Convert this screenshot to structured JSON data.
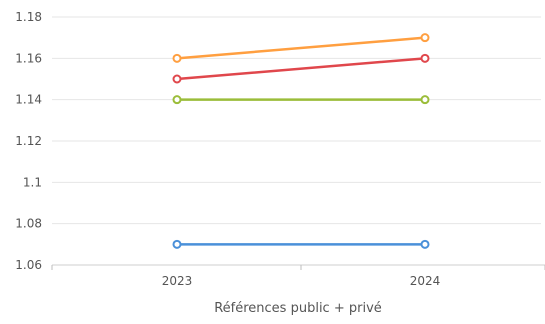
{
  "chart_data": {
    "type": "line",
    "title": "",
    "xlabel": "Références public + privé",
    "ylabel": "",
    "x": [
      "2023",
      "2024"
    ],
    "ylim": [
      1.06,
      1.18
    ],
    "yticks": [
      "1.06",
      "1.08",
      "1.1",
      "1.12",
      "1.14",
      "1.16",
      "1.18"
    ],
    "grid": true,
    "legend": "none",
    "series": [
      {
        "color": "#ff9f40",
        "values": [
          1.16,
          1.17
        ]
      },
      {
        "color": "#e0474c",
        "values": [
          1.15,
          1.16
        ]
      },
      {
        "color": "#9bbd3a",
        "values": [
          1.14,
          1.14
        ]
      },
      {
        "color": "#4a90d9",
        "values": [
          1.07,
          1.07
        ]
      }
    ]
  }
}
